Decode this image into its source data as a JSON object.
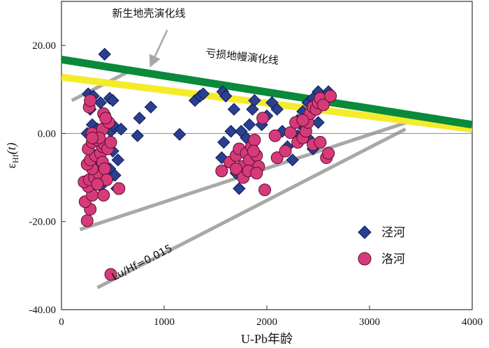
{
  "chart_data": {
    "type": "scatter",
    "title": "",
    "xlabel": "U-Pb年龄",
    "ylabel_main": "ε",
    "ylabel_sub": "Hf",
    "ylabel_paren": "(t)",
    "xlim": [
      0,
      4000
    ],
    "ylim": [
      -40,
      30
    ],
    "x_ticks": [
      "0",
      "1000",
      "2000",
      "3000",
      "4000"
    ],
    "y_ticks": [
      "20.00",
      "0.00",
      "-20.00",
      "-40.00"
    ],
    "x_tick_values": [
      0,
      1000,
      2000,
      3000,
      4000
    ],
    "y_tick_values": [
      20,
      0,
      -20,
      -40
    ],
    "colors": {
      "crust_line": "#0a8a3a",
      "mantle_line": "#f4ec2a",
      "guide_line": "#a8a8a8",
      "arrow": "#a8a8a8",
      "diamond_fill": "#2b3f8f",
      "diamond_stroke": "#0d1a5a",
      "circle_fill": "#d63a7a",
      "circle_stroke": "#5a0f2c",
      "zero_line": "#888888"
    },
    "reference_lines": [
      {
        "name": "新生地壳演化线",
        "from": [
          0,
          16.8
        ],
        "to": [
          4000,
          2.0
        ],
        "role": "crust"
      },
      {
        "name": "亏损地幔演化线",
        "from": [
          0,
          12.8
        ],
        "to": [
          4000,
          1.0
        ],
        "role": "mantle"
      }
    ],
    "guide_lines": [
      {
        "from": [
          100,
          7.5
        ],
        "to": [
          650,
          14.0
        ]
      },
      {
        "from": [
          180,
          -21.8
        ],
        "to": [
          3400,
          2.8
        ]
      },
      {
        "from": [
          350,
          -35.0
        ],
        "to": [
          3350,
          1.0
        ]
      }
    ],
    "annotations": [
      {
        "text": "新生地壳演化线",
        "x": 850,
        "y": 26.5
      },
      {
        "text": "亏损地幔演化线",
        "x": 1400,
        "y": 17.5
      },
      {
        "text": "Lu/Hf=0.015",
        "x": 800,
        "y": -30
      }
    ],
    "legend_position": "lower-right",
    "series": [
      {
        "name": "泾河",
        "marker": "diamond",
        "points": [
          [
            420,
            18.0
          ],
          [
            260,
            9.0
          ],
          [
            310,
            8.5
          ],
          [
            380,
            7.0
          ],
          [
            470,
            8.0
          ],
          [
            500,
            7.5
          ],
          [
            280,
            5.5
          ],
          [
            420,
            4.5
          ],
          [
            450,
            3.0
          ],
          [
            300,
            2.0
          ],
          [
            350,
            1.0
          ],
          [
            480,
            0.5
          ],
          [
            520,
            1.5
          ],
          [
            580,
            1.0
          ],
          [
            250,
            0.0
          ],
          [
            320,
            -1.0
          ],
          [
            400,
            -3.0
          ],
          [
            460,
            -2.0
          ],
          [
            500,
            -4.0
          ],
          [
            550,
            -6.0
          ],
          [
            470,
            -8.0
          ],
          [
            520,
            -9.5
          ],
          [
            450,
            -10.5
          ],
          [
            540,
            -12.5
          ],
          [
            330,
            -7.0
          ],
          [
            380,
            -12.0
          ],
          [
            760,
            3.5
          ],
          [
            870,
            6.0
          ],
          [
            740,
            -0.5
          ],
          [
            1150,
            -0.2
          ],
          [
            1300,
            7.5
          ],
          [
            1350,
            8.5
          ],
          [
            1380,
            9.0
          ],
          [
            1570,
            9.5
          ],
          [
            1600,
            8.5
          ],
          [
            1680,
            5.5
          ],
          [
            1650,
            0.5
          ],
          [
            1580,
            -2.0
          ],
          [
            1560,
            -5.5
          ],
          [
            1700,
            -9.0
          ],
          [
            1730,
            -12.5
          ],
          [
            1750,
            0.5
          ],
          [
            1800,
            -1.0
          ],
          [
            1830,
            2.0
          ],
          [
            1860,
            5.5
          ],
          [
            1880,
            7.5
          ],
          [
            1950,
            2.0
          ],
          [
            2000,
            4.0
          ],
          [
            2050,
            7.0
          ],
          [
            2100,
            5.5
          ],
          [
            2150,
            0.5
          ],
          [
            2200,
            -3.0
          ],
          [
            2250,
            -6.0
          ],
          [
            2300,
            3.0
          ],
          [
            2350,
            5.0
          ],
          [
            2400,
            7.0
          ],
          [
            2450,
            8.0
          ],
          [
            2500,
            9.5
          ],
          [
            2550,
            8.0
          ],
          [
            2600,
            9.5
          ],
          [
            2400,
            -1.0
          ],
          [
            2450,
            -3.5
          ],
          [
            2500,
            2.5
          ],
          [
            2300,
            -0.5
          ],
          [
            2350,
            1.5
          ]
        ]
      },
      {
        "name": "洛河",
        "marker": "circle",
        "points": [
          [
            480,
            -32.0
          ],
          [
            250,
            -19.8
          ],
          [
            280,
            -17.2
          ],
          [
            230,
            -15.5
          ],
          [
            300,
            -14.0
          ],
          [
            260,
            -12.0
          ],
          [
            220,
            -11.0
          ],
          [
            270,
            -10.5
          ],
          [
            320,
            -10.0
          ],
          [
            360,
            -9.0
          ],
          [
            300,
            -8.0
          ],
          [
            250,
            -7.0
          ],
          [
            280,
            -6.0
          ],
          [
            330,
            -5.0
          ],
          [
            380,
            -4.5
          ],
          [
            400,
            -3.0
          ],
          [
            260,
            -3.5
          ],
          [
            300,
            -2.0
          ],
          [
            350,
            -1.5
          ],
          [
            420,
            -2.5
          ],
          [
            450,
            -3.5
          ],
          [
            300,
            0.0
          ],
          [
            400,
            1.0
          ],
          [
            460,
            2.5
          ],
          [
            270,
            6.0
          ],
          [
            280,
            7.5
          ],
          [
            410,
            4.5
          ],
          [
            430,
            3.5
          ],
          [
            370,
            -1.0
          ],
          [
            400,
            -6.5
          ],
          [
            420,
            -8.0
          ],
          [
            440,
            -10.5
          ],
          [
            480,
            -2.0
          ],
          [
            560,
            -12.5
          ],
          [
            350,
            -11.5
          ],
          [
            410,
            -14.0
          ],
          [
            300,
            -1.0
          ],
          [
            1560,
            -8.5
          ],
          [
            1640,
            -6.5
          ],
          [
            1700,
            -5.0
          ],
          [
            1730,
            -3.5
          ],
          [
            1760,
            -7.5
          ],
          [
            1800,
            -4.5
          ],
          [
            1830,
            -6.0
          ],
          [
            1850,
            -3.0
          ],
          [
            1880,
            -1.5
          ],
          [
            1900,
            -5.0
          ],
          [
            1920,
            -7.5
          ],
          [
            1700,
            -8.0
          ],
          [
            1770,
            -10.0
          ],
          [
            1820,
            -8.5
          ],
          [
            1900,
            -9.0
          ],
          [
            1870,
            -4.0
          ],
          [
            1960,
            3.5
          ],
          [
            1980,
            -12.8
          ],
          [
            2080,
            -0.5
          ],
          [
            2100,
            -5.5
          ],
          [
            2180,
            -4.0
          ],
          [
            2230,
            0.2
          ],
          [
            2280,
            2.5
          ],
          [
            2300,
            -2.0
          ],
          [
            2350,
            -1.0
          ],
          [
            2380,
            0.5
          ],
          [
            2400,
            2.5
          ],
          [
            2420,
            4.5
          ],
          [
            2450,
            6.0
          ],
          [
            2480,
            5.5
          ],
          [
            2500,
            7.0
          ],
          [
            2520,
            8.0
          ],
          [
            2550,
            6.5
          ],
          [
            2620,
            8.5
          ],
          [
            2450,
            -2.5
          ],
          [
            2520,
            -2.0
          ],
          [
            2580,
            -5.5
          ],
          [
            2600,
            -4.5
          ],
          [
            2350,
            3.0
          ]
        ]
      }
    ]
  }
}
